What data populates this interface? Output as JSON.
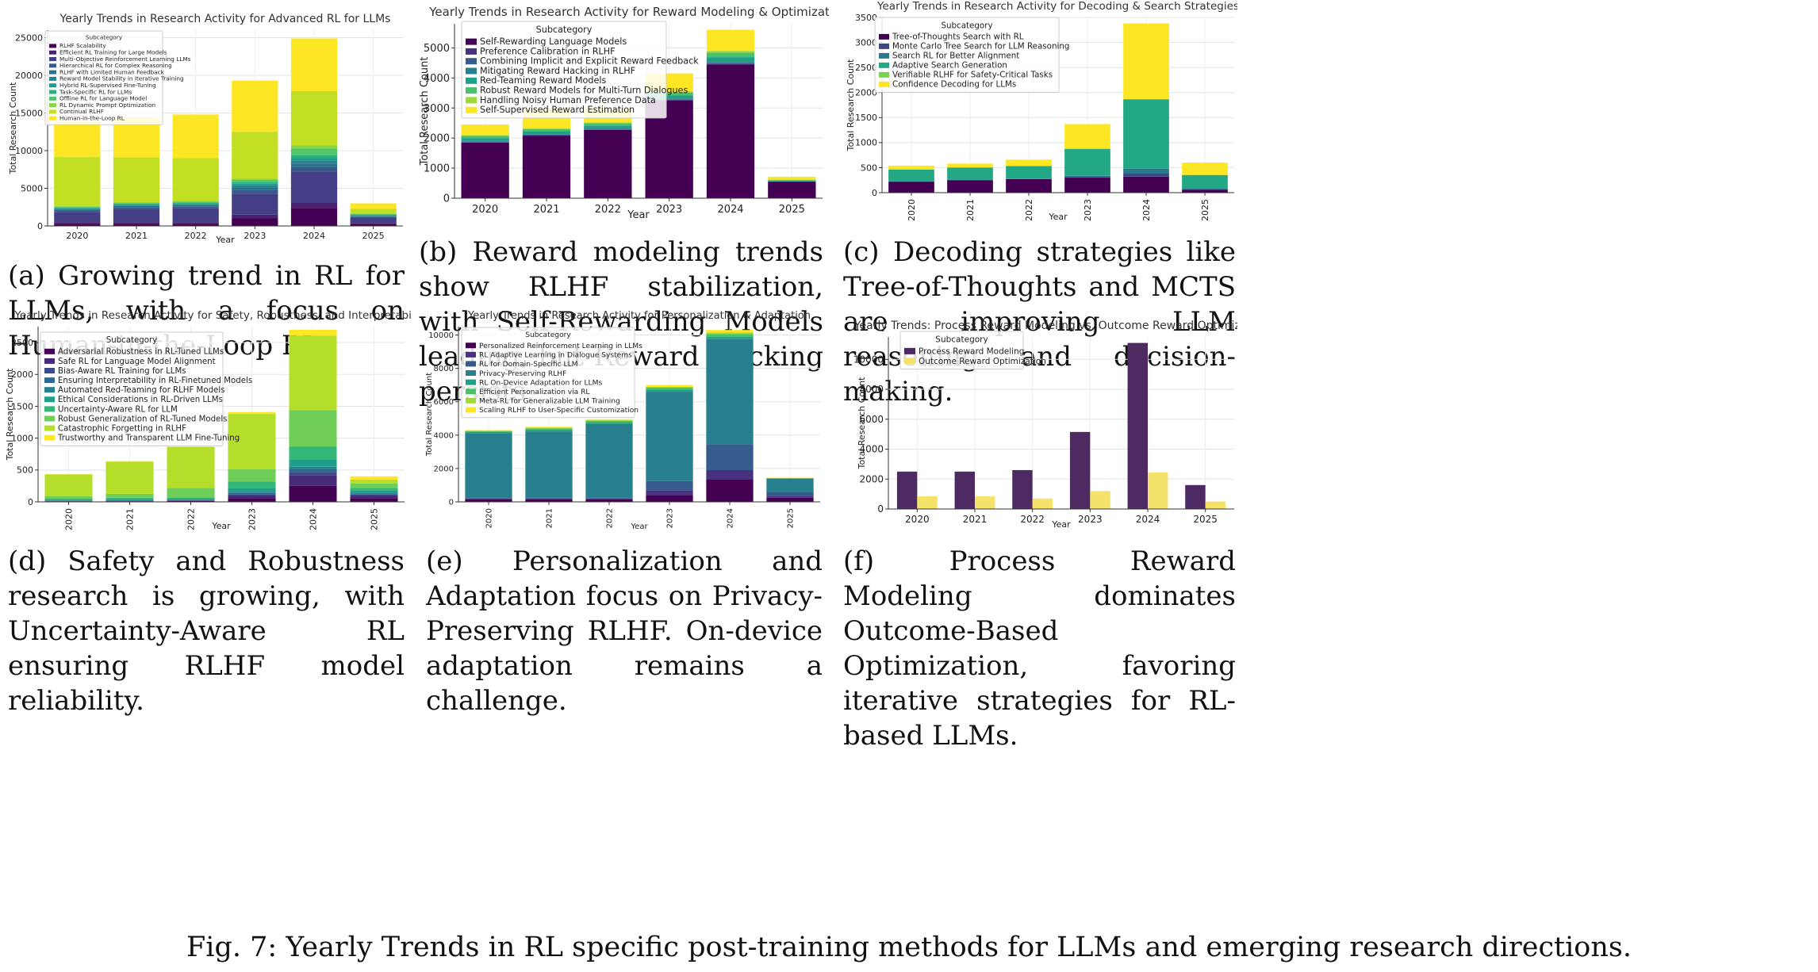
{
  "colors": {
    "v10": [
      "#440154",
      "#482878",
      "#3e4989",
      "#31688e",
      "#26828e",
      "#1f9e89",
      "#35b779",
      "#6ece58",
      "#b5de2b",
      "#fde725"
    ],
    "v11": [
      "#440154",
      "#482475",
      "#414487",
      "#355f8d",
      "#2a788e",
      "#21918c",
      "#22a884",
      "#44bf70",
      "#7ad151",
      "#bddf26",
      "#fde725"
    ],
    "v12": [
      "#440154",
      "#482173",
      "#433e85",
      "#38598c",
      "#2d708e",
      "#25858e",
      "#1e9b8a",
      "#2ab07f",
      "#52c569",
      "#86d549",
      "#c2df23",
      "#fde725"
    ],
    "v8": [
      "#440154",
      "#46327e",
      "#365c8d",
      "#277f8e",
      "#1fa187",
      "#4ac16d",
      "#a0da39",
      "#fde725"
    ],
    "v6": [
      "#440154",
      "#414487",
      "#2a788e",
      "#22a884",
      "#7ad151",
      "#fde725"
    ],
    "bar_pair": [
      "#4e2a62",
      "#f5e26b"
    ]
  },
  "caption_figure": "Fig. 7: Yearly Trends in RL specific post-training methods for LLMs and emerging research directions.",
  "panels": {
    "a": {
      "caption": "(a) Growing trend in RL for LLMs, with a focus on Human-in-the-Loop RL."
    },
    "b": {
      "caption": "(b) Reward modeling trends show RLHF stabilization, with Self-Rewarding Models leading, but Reward Hacking persists."
    },
    "c": {
      "caption": "(c) Decoding strategies like Tree-of-Thoughts and MCTS are improving LLM reasoning and decision-making."
    },
    "d": {
      "caption": "(d) Safety and Robustness research is growing, with Uncertainty-Aware RL ensuring RLHF model reliability."
    },
    "e": {
      "caption": "(e) Personalization and Adaptation focus on Privacy-Preserving RLHF. On-device adaptation remains a challenge."
    },
    "f": {
      "caption": "(f) Process Reward Modeling dominates Outcome-Based Optimization, favoring iterative strategies for RL-based LLMs."
    }
  },
  "chart_data": [
    {
      "id": "a",
      "type": "bar",
      "stacked": true,
      "title": "Yearly Trends in Research Activity for Advanced RL for LLMs",
      "xlabel": "Year",
      "ylabel": "Total Research Count",
      "categories": [
        "2020",
        "2021",
        "2022",
        "2023",
        "2024",
        "2025"
      ],
      "ylim": [
        0,
        26000
      ],
      "yticks": [
        0,
        5000,
        10000,
        15000,
        20000,
        25000
      ],
      "legend_title": "Subcategory",
      "legend_position": "top-left",
      "palette": "v12",
      "series": [
        {
          "name": "RLHF Scalability",
          "values": [
            300,
            300,
            300,
            1000,
            2400,
            300
          ]
        },
        {
          "name": "Efficient RL Training for Large Models",
          "values": [
            200,
            200,
            200,
            500,
            700,
            100
          ]
        },
        {
          "name": "Multi-Objective Reinforcement Learning LLMs",
          "values": [
            1300,
            1800,
            1900,
            2800,
            4100,
            700
          ]
        },
        {
          "name": "Hierarchical RL for Complex Reasoning",
          "values": [
            200,
            200,
            200,
            500,
            600,
            100
          ]
        },
        {
          "name": "RLHF with Limited Human Feedback",
          "values": [
            150,
            150,
            150,
            300,
            500,
            80
          ]
        },
        {
          "name": "Reward Model Stability in Iterative Training",
          "values": [
            100,
            100,
            100,
            300,
            400,
            80
          ]
        },
        {
          "name": "Hybrid RL-Supervised Fine-Tuning",
          "values": [
            100,
            100,
            100,
            200,
            300,
            60
          ]
        },
        {
          "name": "Task-Specific RL for LLMs",
          "values": [
            100,
            100,
            100,
            200,
            400,
            60
          ]
        },
        {
          "name": "Offline RL for Language Model",
          "values": [
            100,
            100,
            150,
            300,
            900,
            120
          ]
        },
        {
          "name": "RL Dynamic Prompt Optimization",
          "values": [
            100,
            100,
            150,
            200,
            400,
            100
          ]
        },
        {
          "name": "Continual RLHF",
          "values": [
            6500,
            5950,
            5650,
            6200,
            7200,
            600
          ]
        },
        {
          "name": "Human-in-the-Loop RL",
          "values": [
            4800,
            5400,
            5800,
            6800,
            7000,
            700
          ]
        }
      ]
    },
    {
      "id": "b",
      "type": "bar",
      "stacked": true,
      "title": "Yearly Trends in Research Activity for Reward Modeling & Optimization",
      "xlabel": "Year",
      "ylabel": "Total Research Count",
      "categories": [
        "2020",
        "2021",
        "2022",
        "2023",
        "2024",
        "2025"
      ],
      "ylim": [
        0,
        5800
      ],
      "yticks": [
        0,
        1000,
        2000,
        3000,
        4000,
        5000
      ],
      "legend_title": "Subcategory",
      "legend_position": "top-left",
      "palette": "v8",
      "series": [
        {
          "name": "Self-Rewarding Language Models",
          "values": [
            1850,
            2080,
            2270,
            3250,
            4450,
            550
          ]
        },
        {
          "name": "Preference Calibration in RLHF",
          "values": [
            15,
            15,
            15,
            20,
            25,
            5
          ]
        },
        {
          "name": "Combining Implicit and Explicit Reward Feedback",
          "values": [
            15,
            15,
            15,
            20,
            25,
            5
          ]
        },
        {
          "name": "Mitigating Reward Hacking in RLHF",
          "values": [
            20,
            20,
            20,
            25,
            30,
            5
          ]
        },
        {
          "name": "Red-Teaming Reward Models",
          "values": [
            100,
            100,
            100,
            100,
            160,
            20
          ]
        },
        {
          "name": "Robust Reward Models for Multi-Turn Dialogues",
          "values": [
            70,
            70,
            70,
            100,
            150,
            20
          ]
        },
        {
          "name": "Handling Noisy Human Preference Data",
          "values": [
            30,
            30,
            30,
            40,
            60,
            20
          ]
        },
        {
          "name": "Self-Supervised Reward Estimation",
          "values": [
            350,
            670,
            510,
            595,
            700,
            90
          ]
        }
      ]
    },
    {
      "id": "c",
      "type": "bar",
      "stacked": true,
      "title": "Yearly Trends in Research Activity for Decoding & Search Strategies",
      "xlabel": "Year",
      "ylabel": "Total Research Count",
      "categories": [
        "2020",
        "2021",
        "2022",
        "2023",
        "2024",
        "2025"
      ],
      "ylim": [
        0,
        3500
      ],
      "yticks": [
        0,
        500,
        1000,
        1500,
        2000,
        2500,
        3000,
        3500
      ],
      "legend_title": "Subcategory",
      "legend_position": "top-left",
      "palette": "v6",
      "series": [
        {
          "name": "Tree-of-Thoughts Search with RL",
          "values": [
            220,
            250,
            270,
            300,
            320,
            60
          ]
        },
        {
          "name": "Monte Carlo Tree Search for LLM Reasoning",
          "values": [
            5,
            5,
            5,
            15,
            60,
            10
          ]
        },
        {
          "name": "Search RL for Better Alignment",
          "values": [
            5,
            5,
            5,
            20,
            100,
            20
          ]
        },
        {
          "name": "Adaptive Search Generation",
          "values": [
            230,
            240,
            250,
            535,
            1380,
            260
          ]
        },
        {
          "name": "Verifiable RLHF for Safety-Critical Tasks",
          "values": [
            5,
            5,
            5,
            10,
            10,
            5
          ]
        },
        {
          "name": "Confidence Decoding for LLMs",
          "values": [
            75,
            75,
            125,
            490,
            1510,
            245
          ]
        }
      ]
    },
    {
      "id": "d",
      "type": "bar",
      "stacked": true,
      "title": "Yearly Trends in Research Activity for Safety, Robustness, and Interpretability",
      "xlabel": "Year",
      "ylabel": "Total Research Count",
      "categories": [
        "2020",
        "2021",
        "2022",
        "2023",
        "2024",
        "2025"
      ],
      "ylim": [
        0,
        2750
      ],
      "yticks": [
        0,
        500,
        1000,
        1500,
        2000,
        2500
      ],
      "legend_title": "Subcategory",
      "legend_position": "top-left",
      "palette": "v10",
      "series": [
        {
          "name": "Adversarial Robustness in RL-Tuned LLMs",
          "values": [
            5,
            10,
            15,
            60,
            250,
            60
          ]
        },
        {
          "name": "Safe RL for Language Model Alignment",
          "values": [
            5,
            5,
            5,
            40,
            170,
            40
          ]
        },
        {
          "name": "Bias-Aware RL Training for LLMs",
          "values": [
            5,
            5,
            5,
            20,
            50,
            15
          ]
        },
        {
          "name": "Ensuring Interpretability in RL-Finetuned Models",
          "values": [
            5,
            5,
            5,
            20,
            40,
            15
          ]
        },
        {
          "name": "Automated Red-Teaming for RLHF Models",
          "values": [
            5,
            5,
            5,
            20,
            40,
            15
          ]
        },
        {
          "name": "Ethical Considerations in RL-Driven LLMs",
          "values": [
            10,
            15,
            15,
            60,
            120,
            30
          ]
        },
        {
          "name": "Uncertainty-Aware RL for LLM",
          "values": [
            15,
            20,
            20,
            100,
            200,
            45
          ]
        },
        {
          "name": "Robust Generalization of RL-Tuned Models",
          "values": [
            40,
            60,
            150,
            190,
            570,
            70
          ]
        },
        {
          "name": "Catastrophic Forgetting in RLHF",
          "values": [
            340,
            505,
            640,
            870,
            1170,
            60
          ]
        },
        {
          "name": "Trustworthy and Transparent LLM Fine-Tuning",
          "values": [
            5,
            10,
            10,
            30,
            90,
            50
          ]
        }
      ]
    },
    {
      "id": "e",
      "type": "bar",
      "stacked": true,
      "title": "Yearly Trends in Research Activity for Personalization & Adaptation",
      "xlabel": "Year",
      "ylabel": "Total Research Count",
      "categories": [
        "2020",
        "2021",
        "2022",
        "2023",
        "2024",
        "2025"
      ],
      "ylim": [
        0,
        10500
      ],
      "yticks": [
        0,
        2000,
        4000,
        6000,
        8000,
        10000
      ],
      "legend_title": "Subcategory",
      "legend_position": "top-left",
      "palette": "v8",
      "series": [
        {
          "name": "Personalized Reinforcement Learning in LLMs",
          "values": [
            150,
            150,
            150,
            400,
            1350,
            250
          ]
        },
        {
          "name": "RL Adaptive Learning in Dialogue Systems",
          "values": [
            50,
            50,
            50,
            300,
            550,
            120
          ]
        },
        {
          "name": "RL for Domain-Specific LLM",
          "values": [
            70,
            70,
            70,
            550,
            1550,
            220
          ]
        },
        {
          "name": "Privacy-Preserving RLHF",
          "values": [
            3850,
            3950,
            4400,
            5350,
            6300,
            790
          ]
        },
        {
          "name": "RL On-Device Adaptation for LLMs",
          "values": [
            60,
            80,
            80,
            120,
            150,
            20
          ]
        },
        {
          "name": "Efficient Personalization via RL",
          "values": [
            60,
            100,
            100,
            120,
            150,
            20
          ]
        },
        {
          "name": "Meta-RL for Generalizable LLM Training",
          "values": [
            30,
            50,
            50,
            60,
            100,
            10
          ]
        },
        {
          "name": "Scaling RLHF to User-Specific Customization",
          "values": [
            30,
            50,
            50,
            100,
            150,
            20
          ]
        }
      ]
    },
    {
      "id": "f",
      "type": "bar",
      "stacked": false,
      "title": "Yearly Trends: Process Reward Modeling vs. Outcome Reward Optimization",
      "xlabel": "Year",
      "ylabel": "Total Research Count",
      "categories": [
        "2020",
        "2021",
        "2022",
        "2023",
        "2024",
        "2025"
      ],
      "ylim": [
        0,
        11500
      ],
      "yticks": [
        0,
        2000,
        4000,
        6000,
        8000,
        10000
      ],
      "legend_title": "Subcategory",
      "legend_position": "top-left",
      "palette": "bar_pair",
      "series": [
        {
          "name": "Process Reward Modeling",
          "values": [
            2500,
            2500,
            2600,
            5150,
            11100,
            1600
          ]
        },
        {
          "name": "Outcome Reward Optimization",
          "values": [
            850,
            850,
            700,
            1200,
            2450,
            500
          ]
        }
      ]
    }
  ]
}
